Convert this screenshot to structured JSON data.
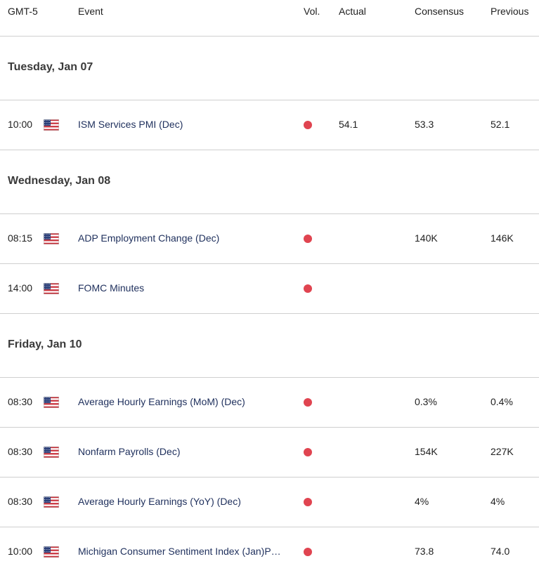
{
  "header": {
    "timezone": "GMT-5",
    "event": "Event",
    "vol": "Vol.",
    "actual": "Actual",
    "consensus": "Consensus",
    "previous": "Previous"
  },
  "colors": {
    "volatility_high": "#e04450",
    "event_link": "#1e2f5c"
  },
  "days": [
    {
      "label": "Tuesday, Jan 07"
    },
    {
      "label": "Wednesday, Jan 08"
    },
    {
      "label": "Friday, Jan 10"
    }
  ],
  "events": [
    {
      "time": "10:00",
      "country": "us-flag-icon",
      "name": "ISM Services PMI (Dec)",
      "volatility": "high",
      "actual": "54.1",
      "consensus": "53.3",
      "previous": "52.1"
    },
    {
      "time": "08:15",
      "country": "us-flag-icon",
      "name": "ADP Employment Change (Dec)",
      "volatility": "high",
      "actual": "",
      "consensus": "140K",
      "previous": "146K"
    },
    {
      "time": "14:00",
      "country": "us-flag-icon",
      "name": "FOMC Minutes",
      "volatility": "high",
      "actual": "",
      "consensus": "",
      "previous": ""
    },
    {
      "time": "08:30",
      "country": "us-flag-icon",
      "name": "Average Hourly Earnings (MoM) (Dec)",
      "volatility": "high",
      "actual": "",
      "consensus": "0.3%",
      "previous": "0.4%"
    },
    {
      "time": "08:30",
      "country": "us-flag-icon",
      "name": "Nonfarm Payrolls (Dec)",
      "volatility": "high",
      "actual": "",
      "consensus": "154K",
      "previous": "227K"
    },
    {
      "time": "08:30",
      "country": "us-flag-icon",
      "name": "Average Hourly Earnings (YoY) (Dec)",
      "volatility": "high",
      "actual": "",
      "consensus": "4%",
      "previous": "4%"
    },
    {
      "time": "10:00",
      "country": "us-flag-icon",
      "name": "Michigan Consumer Sentiment Index (Jan)P…",
      "volatility": "high",
      "actual": "",
      "consensus": "73.8",
      "previous": "74.0"
    }
  ]
}
